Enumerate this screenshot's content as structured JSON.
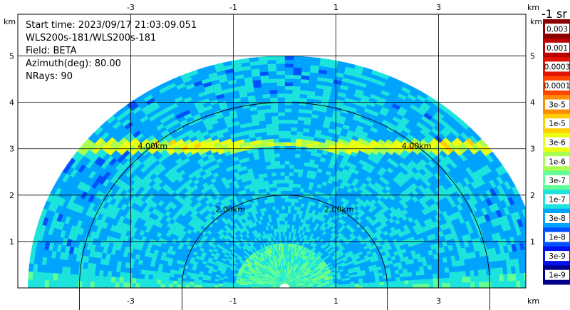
{
  "chart_data": {
    "type": "heatmap",
    "plot_kind": "lidar-rhi-fan",
    "info_lines": [
      "Start time: 2023/09/17 21:03:09.051",
      "WLS200s-181/WLS200s-181",
      "Field: BETA",
      "Azimuth(deg): 80.00",
      "NRays: 90"
    ],
    "x_unit": "km",
    "y_unit": "km",
    "x_ticks": [
      -3,
      -1,
      1,
      3
    ],
    "y_ticks": [
      1,
      2,
      3,
      4,
      5
    ],
    "xlim": [
      -5.2,
      4.7
    ],
    "ylim": [
      0,
      5.9
    ],
    "max_range_km": 5.0,
    "range_ring_km": [
      2.0,
      4.0
    ],
    "range_ring_labels": [
      "2.00km",
      "2.00km",
      "4.00km",
      "4.00km"
    ],
    "aerosol_layer_km": [
      3.0,
      3.1
    ],
    "colorbar": {
      "title": "-1 sr",
      "tick_labels": [
        "0.003",
        "0.001",
        "0.0003",
        "0.0001",
        "3e-5",
        "1e-5",
        "3e-6",
        "1e-6",
        "3e-7",
        "1e-7",
        "3e-8",
        "1e-8",
        "3e-9",
        "1e-9"
      ],
      "colors": [
        "#8b0000",
        "#bb0000",
        "#e01400",
        "#ff4600",
        "#ff8c00",
        "#ffcd00",
        "#eaff12",
        "#a8ff4f",
        "#62ff95",
        "#1ce3dc",
        "#00a4ff",
        "#0050ff",
        "#0010ee",
        "#00008b"
      ]
    },
    "grid": true
  }
}
